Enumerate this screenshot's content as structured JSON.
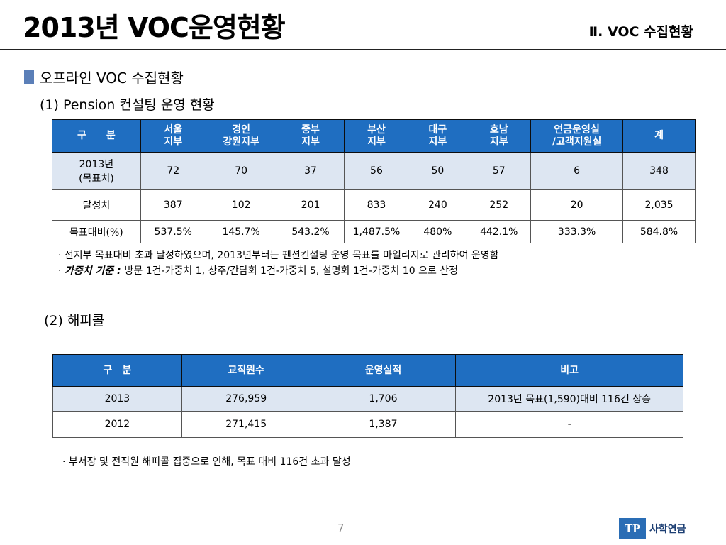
{
  "header": {
    "title": "2013년 VOC운영현황",
    "section": "Ⅱ. VOC 수집현황"
  },
  "subheading": "오프라인 VOC 수집현황",
  "pension": {
    "heading": "(1) Pension 컨설팅 운영 현황",
    "columns": [
      [
        "구　　분",
        ""
      ],
      [
        "서울",
        "지부"
      ],
      [
        "경인",
        "강원지부"
      ],
      [
        "중부",
        "지부"
      ],
      [
        "부산",
        "지부"
      ],
      [
        "대구",
        "지부"
      ],
      [
        "호남",
        "지부"
      ],
      [
        "연금운영실",
        "/고객지원실"
      ],
      [
        "계",
        ""
      ]
    ],
    "rows": [
      {
        "label": [
          "2013년",
          "(목표치)"
        ],
        "values": [
          "72",
          "70",
          "37",
          "56",
          "50",
          "57",
          "6",
          "348"
        ]
      },
      {
        "label": [
          "달성치",
          ""
        ],
        "values": [
          "387",
          "102",
          "201",
          "833",
          "240",
          "252",
          "20",
          "2,035"
        ]
      },
      {
        "label": [
          "목표대비(%)",
          ""
        ],
        "values": [
          "537.5%",
          "145.7%",
          "543.2%",
          "1,487.5%",
          "480%",
          "442.1%",
          "333.3%",
          "584.8%"
        ]
      }
    ],
    "note1": "전지부 목표대비 초과 달성하였으며, 2013년부터는 펜션컨설팅 운영 목표를 마일리지로 관리하여 운영함",
    "note2_emph": "가중치 기준 : ",
    "note2_rest": "방문 1건-가중치 1, 상주/간담회 1건-가중치 5, 설명회 1건-가중치 10 으로 산정"
  },
  "happycall": {
    "heading": "(2) 해피콜",
    "columns": [
      "구　분",
      "교직원수",
      "운영실적",
      "비고"
    ],
    "rows": [
      [
        "2013",
        "276,959",
        "1,706",
        "2013년 목표(1,590)대비 116건 상승"
      ],
      [
        "2012",
        "271,415",
        "1,387",
        "-"
      ]
    ],
    "note": "부서장 및 전직원 해피콜 집중으로 인해, 목표 대비 116건 초과 달성"
  },
  "footer": {
    "page": "7",
    "logo_mark": "TP",
    "logo_text": "사학연금"
  },
  "colors": {
    "header_fill": "#1f6ec1",
    "shaded_row": "#dde6f2",
    "bullet_square": "#5b7fb8"
  }
}
